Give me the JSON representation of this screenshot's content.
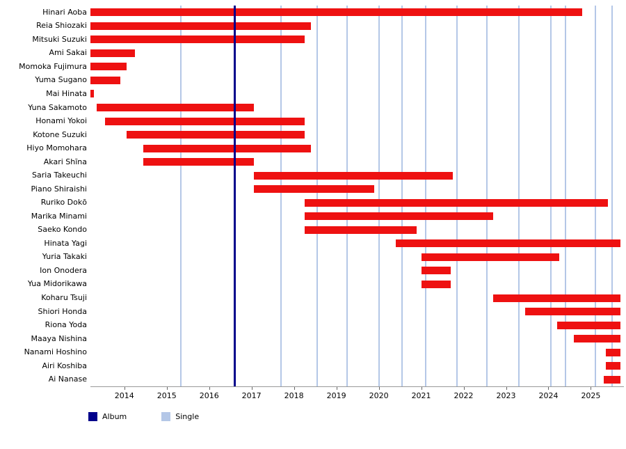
{
  "legend": {
    "items": [
      {
        "label": "Album",
        "color_key": "album"
      },
      {
        "label": "Single",
        "color_key": "single"
      }
    ]
  },
  "colors": {
    "bar": "#ee1111",
    "album": "#00008b",
    "single": "#b4c7e7",
    "axis": "#999999",
    "tick": "#666666",
    "text": "#000000"
  },
  "chart_data": {
    "type": "bar",
    "variant": "member-timeline-gantt",
    "title": "",
    "xlabel": "",
    "ylabel": "",
    "x_axis": {
      "min": 2013.2,
      "max": 2025.78,
      "ticks": [
        2014,
        2015,
        2016,
        2017,
        2018,
        2019,
        2020,
        2021,
        2022,
        2023,
        2024,
        2025
      ]
    },
    "members": [
      {
        "name": "Hinari Aoba",
        "start": 2013.2,
        "end": 2024.8
      },
      {
        "name": "Reia Shiozaki",
        "start": 2013.2,
        "end": 2018.4
      },
      {
        "name": "Mitsuki Suzuki",
        "start": 2013.2,
        "end": 2018.25
      },
      {
        "name": "Ami Sakai",
        "start": 2013.2,
        "end": 2014.25
      },
      {
        "name": "Momoka Fujimura",
        "start": 2013.2,
        "end": 2014.05
      },
      {
        "name": "Yuma Sugano",
        "start": 2013.2,
        "end": 2013.9
      },
      {
        "name": "Mai Hinata",
        "start": 2013.2,
        "end": 2013.28
      },
      {
        "name": "Yuna Sakamoto",
        "start": 2013.35,
        "end": 2017.05
      },
      {
        "name": "Honami Yokoi",
        "start": 2013.55,
        "end": 2018.25
      },
      {
        "name": "Kotone Suzuki",
        "start": 2014.05,
        "end": 2018.25
      },
      {
        "name": "Hiyo Momohara",
        "start": 2014.45,
        "end": 2018.4
      },
      {
        "name": "Akari Shīna",
        "start": 2014.45,
        "end": 2017.05
      },
      {
        "name": "Saria Takeuchi",
        "start": 2017.05,
        "end": 2021.75
      },
      {
        "name": "Piano Shiraishi",
        "start": 2017.05,
        "end": 2019.9
      },
      {
        "name": "Ruriko Dokō",
        "start": 2018.25,
        "end": 2025.4
      },
      {
        "name": "Marika Minami",
        "start": 2018.25,
        "end": 2022.7
      },
      {
        "name": "Saeko Kondo",
        "start": 2018.25,
        "end": 2020.9
      },
      {
        "name": "Hinata Yagi",
        "start": 2020.4,
        "end": 2025.7
      },
      {
        "name": "Yuria Takaki",
        "start": 2021.0,
        "end": 2024.25
      },
      {
        "name": "Ion Onodera",
        "start": 2021.0,
        "end": 2021.7
      },
      {
        "name": "Yua Midorikawa",
        "start": 2021.0,
        "end": 2021.7
      },
      {
        "name": "Koharu Tsuji",
        "start": 2022.7,
        "end": 2025.7
      },
      {
        "name": "Shiori Honda",
        "start": 2023.45,
        "end": 2025.7
      },
      {
        "name": "Riona Yoda",
        "start": 2024.2,
        "end": 2025.7
      },
      {
        "name": "Maaya Nishina",
        "start": 2024.6,
        "end": 2025.7
      },
      {
        "name": "Nanami Hoshino",
        "start": 2025.35,
        "end": 2025.7
      },
      {
        "name": "Airi Koshiba",
        "start": 2025.35,
        "end": 2025.7
      },
      {
        "name": "Ai Nanase",
        "start": 2025.3,
        "end": 2025.7
      }
    ],
    "albums": [
      2016.6
    ],
    "singles": [
      2015.33,
      2017.7,
      2018.55,
      2019.25,
      2020.0,
      2020.55,
      2021.1,
      2021.85,
      2022.55,
      2023.3,
      2024.05,
      2024.4,
      2025.1,
      2025.5
    ]
  }
}
